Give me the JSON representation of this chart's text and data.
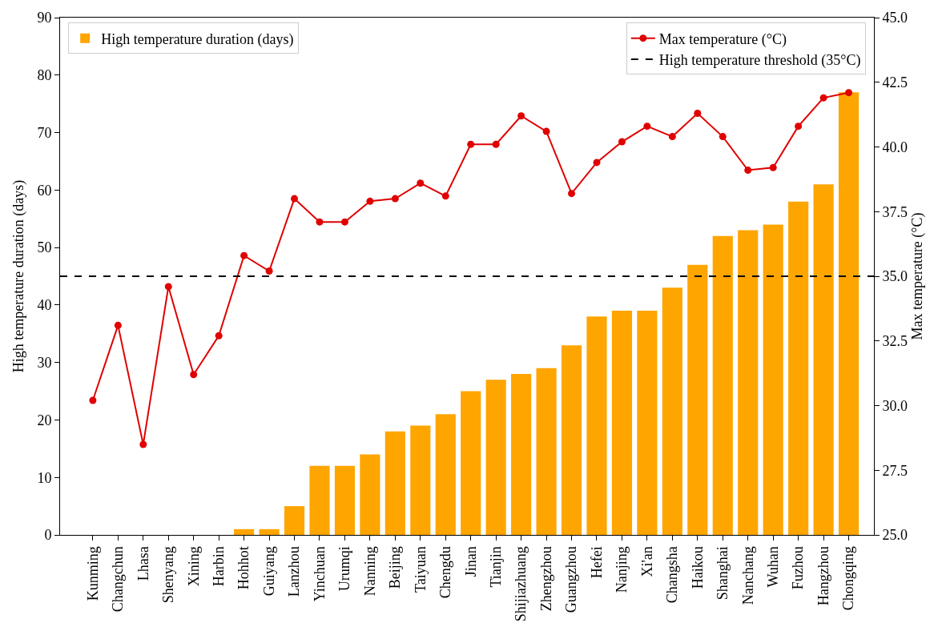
{
  "chart_data": {
    "type": "bar",
    "ylabel": "High temperature duration (days)",
    "y2label": "Max temperature (°C)",
    "categories": [
      "Kunming",
      "Changchun",
      "Lhasa",
      "Shenyang",
      "Xining",
      "Harbin",
      "Hohhot",
      "Guiyang",
      "Lanzhou",
      "Yinchuan",
      "Urumqi",
      "Nanning",
      "Beijing",
      "Taiyuan",
      "Chengdu",
      "Jinan",
      "Tianjin",
      "Shijiazhuang",
      "Zhengzhou",
      "Guangzhou",
      "Hefei",
      "Nanjing",
      "Xi'an",
      "Changsha",
      "Haikou",
      "Shanghai",
      "Nanchang",
      "Wuhan",
      "Fuzhou",
      "Hangzhou",
      "Chongqing"
    ],
    "series": [
      {
        "name": "High temperature duration (days)",
        "color": "#ffa500",
        "values": [
          0,
          0,
          0,
          0,
          0,
          0,
          1,
          1,
          5,
          12,
          12,
          14,
          18,
          19,
          21,
          25,
          27,
          28,
          29,
          33,
          38,
          39,
          39,
          43,
          47,
          52,
          53,
          54,
          58,
          61,
          77
        ]
      },
      {
        "name": "Max temperature (°C)",
        "type": "line",
        "axis": "y2",
        "color": "#e00000",
        "values": [
          30.2,
          33.1,
          28.5,
          34.6,
          31.2,
          32.7,
          35.8,
          35.2,
          38.0,
          37.1,
          37.1,
          37.9,
          38.0,
          38.6,
          38.1,
          40.1,
          40.1,
          41.2,
          40.6,
          38.2,
          39.4,
          40.2,
          40.8,
          40.4,
          41.3,
          40.4,
          39.1,
          39.2,
          40.8,
          41.9,
          42.1
        ]
      }
    ],
    "ref_lines": [
      {
        "axis": "y2",
        "value": 35,
        "label": "High temperature threshold (35°C)",
        "color": "#000000",
        "line_style": "dashed"
      }
    ],
    "ylim": [
      0,
      90
    ],
    "yticks": [
      0,
      10,
      20,
      30,
      40,
      50,
      60,
      70,
      80,
      90
    ],
    "y2lim": [
      25,
      45
    ],
    "y2ticks": [
      {
        "value": 25,
        "label": "25.0"
      },
      {
        "value": 27.5,
        "label": "27.5"
      },
      {
        "value": 30,
        "label": "30.0"
      },
      {
        "value": 32.5,
        "label": "32.5"
      },
      {
        "value": 35,
        "label": "35.0"
      },
      {
        "value": 37.5,
        "label": "37.5"
      },
      {
        "value": 40,
        "label": "40.0"
      },
      {
        "value": 42.5,
        "label": "42.5"
      },
      {
        "value": 45,
        "label": "45.0"
      }
    ],
    "marker": "circle",
    "grid": false,
    "legend": "top"
  }
}
